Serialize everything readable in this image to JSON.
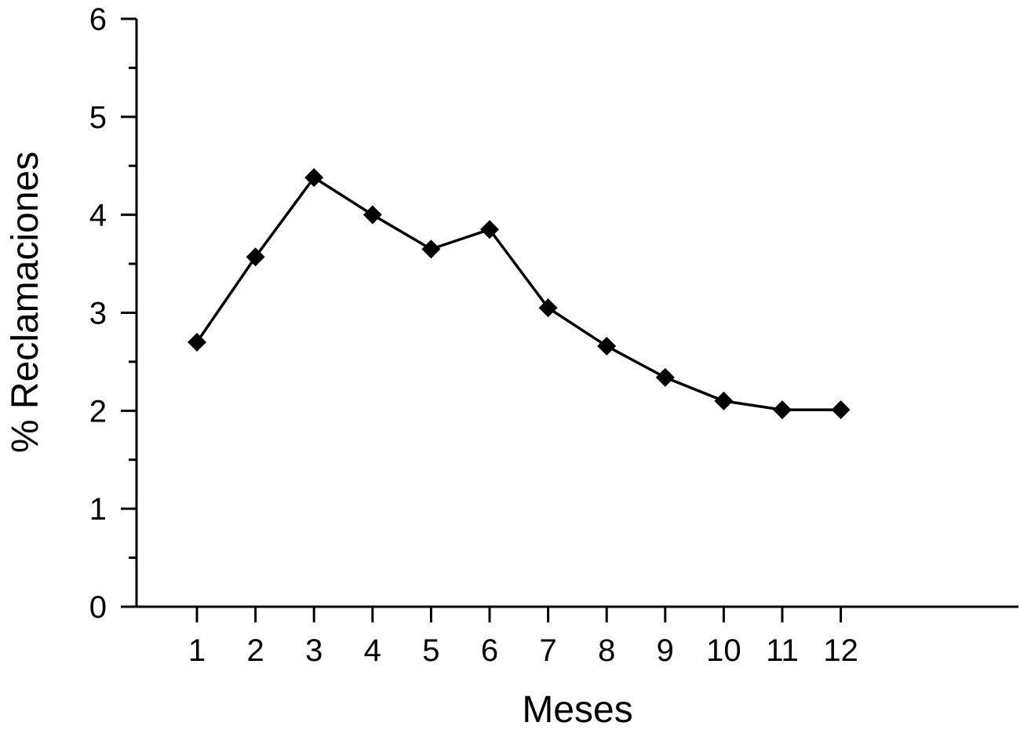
{
  "chart_data": {
    "type": "line",
    "title": "",
    "xlabel": "Meses",
    "ylabel": "% Reclamaciones",
    "categories": [
      "1",
      "2",
      "3",
      "4",
      "5",
      "6",
      "7",
      "8",
      "9",
      "10",
      "11",
      "12"
    ],
    "series": [
      {
        "values": [
          2.7,
          3.57,
          4.38,
          4.0,
          3.65,
          3.85,
          3.05,
          2.66,
          2.34,
          2.1,
          2.01,
          2.01
        ],
        "marker": "diamond",
        "color": "#000000"
      }
    ],
    "ylim": [
      0,
      6
    ],
    "y_ticks": [
      "0",
      "1",
      "2",
      "3",
      "4",
      "5",
      "6"
    ],
    "y_minor_tick_step": 0.5,
    "grid": false,
    "legend": "none"
  }
}
